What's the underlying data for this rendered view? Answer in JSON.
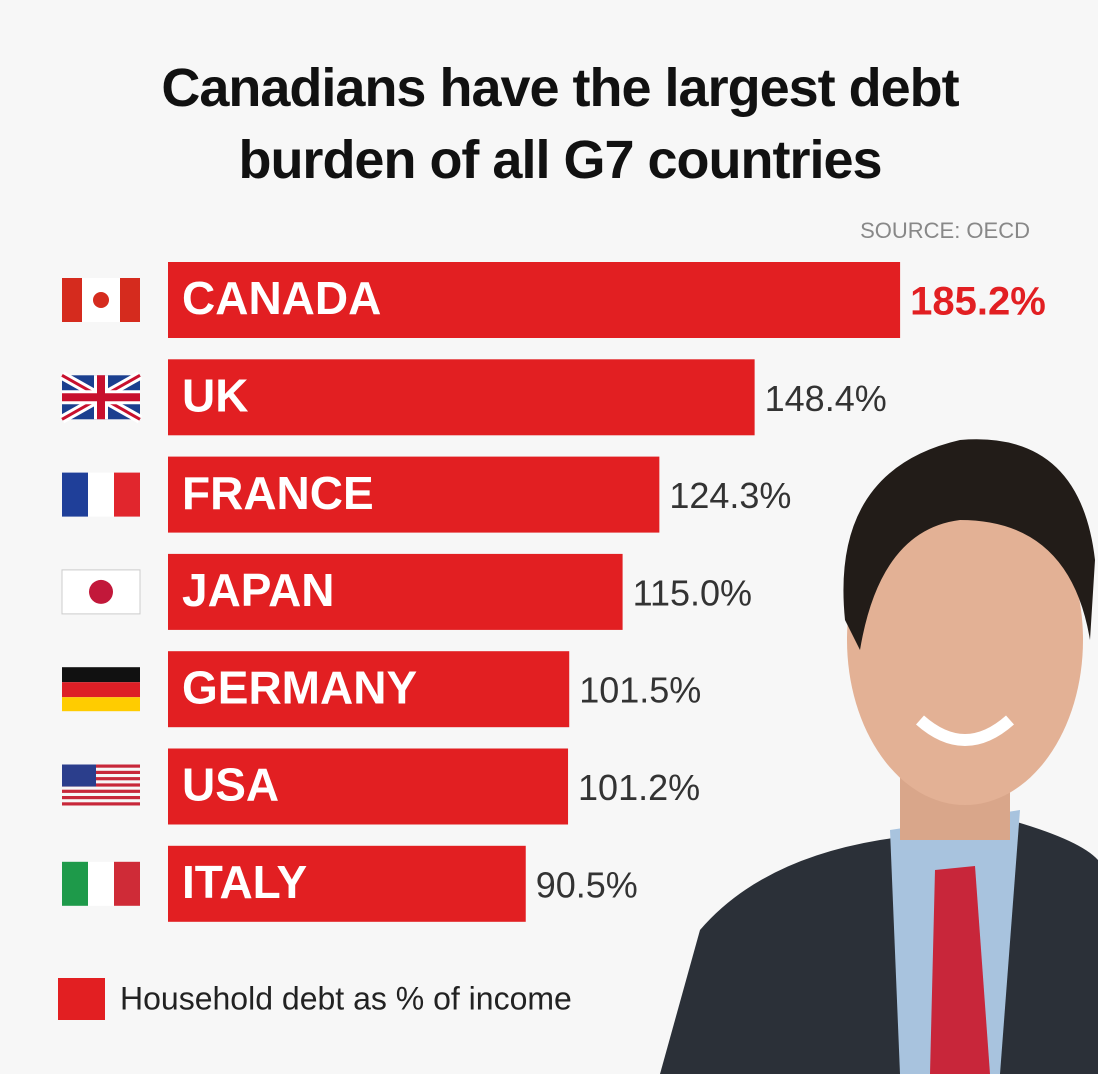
{
  "chart_data": {
    "type": "bar",
    "orientation": "horizontal",
    "title": "Canadians have the largest debt burden of all G7 countries",
    "source": "SOURCE: OECD",
    "categories": [
      "CANADA",
      "UK",
      "FRANCE",
      "JAPAN",
      "GERMANY",
      "USA",
      "ITALY"
    ],
    "series": [
      {
        "name": "Household debt as % of income",
        "color": "#e21f22",
        "values": [
          185.2,
          148.4,
          124.3,
          115.0,
          101.5,
          101.2,
          90.5
        ],
        "value_labels": [
          "185.2%",
          "148.4%",
          "124.3%",
          "115.0%",
          "101.5%",
          "101.2%",
          "90.5%"
        ],
        "value_label_colors": [
          "#e21f22",
          "#333333",
          "#333333",
          "#333333",
          "#333333",
          "#333333",
          "#333333"
        ]
      }
    ],
    "legend": "bottom-left"
  }
}
